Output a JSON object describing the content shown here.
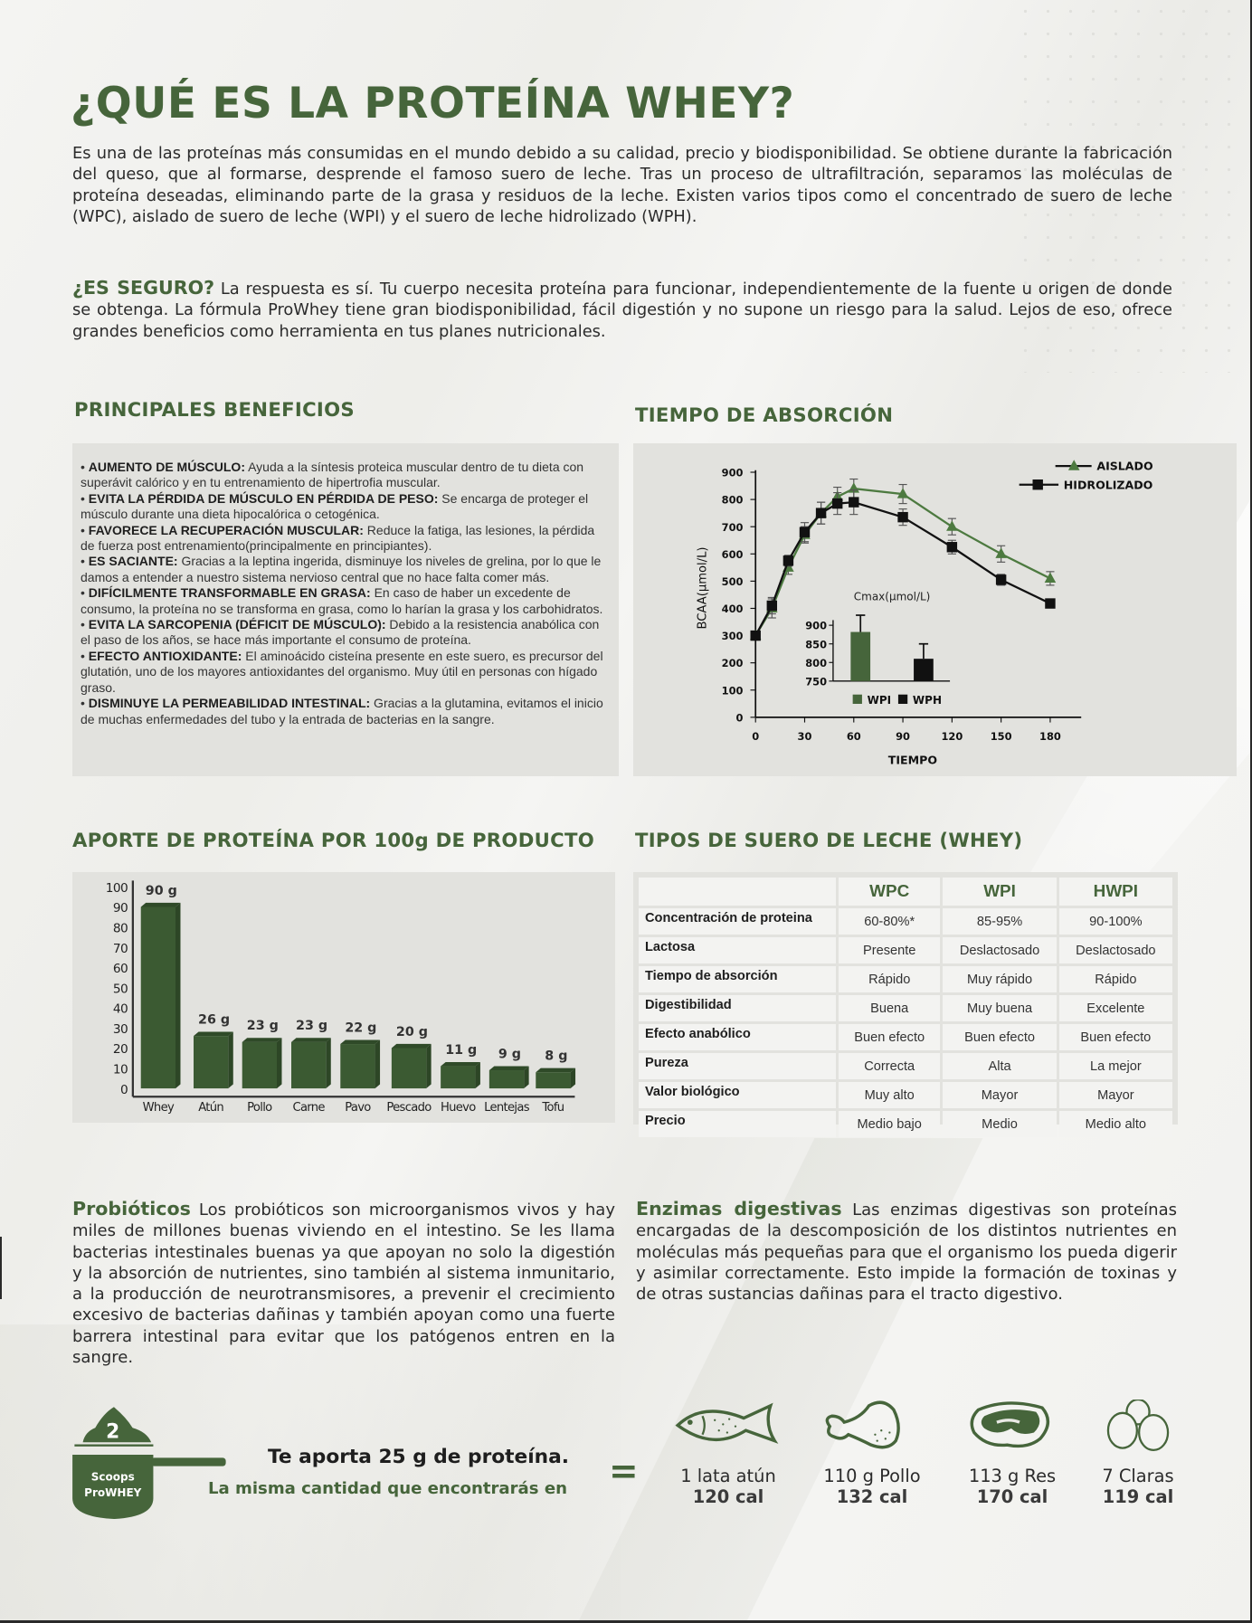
{
  "title": "¿QUÉ ES LA PROTEÍNA WHEY?",
  "intro": "Es una de las proteínas más consumidas en el mundo debido a su calidad, precio y biodisponibilidad. Se obtiene durante la fabricación del queso, que al formarse, desprende el famoso suero de leche. Tras un proceso de ultrafiltración, separamos las moléculas de proteína deseadas, eliminando parte de la grasa y residuos de la leche. Existen varios tipos como el concentrado de suero de leche (WPC), aislado de suero de leche (WPI) y el suero de leche hidrolizado (WPH).",
  "seguro": {
    "lead": "¿ES SEGURO?",
    "text": " La respuesta es sí. Tu cuerpo necesita proteína para funcionar, independientemente de la fuente u origen de donde se obtenga. La fórmula ProWhey tiene gran biodisponibilidad, fácil digestión y no supone un riesgo para la salud. Lejos de eso, ofrece grandes beneficios como herramienta en tus planes nutricionales."
  },
  "benefits": {
    "heading": "PRINCIPALES BENEFICIOS",
    "items": [
      {
        "title": "AUMENTO DE MÚSCULO:",
        "text": " Ayuda a la síntesis proteica muscular dentro de tu dieta con superávit calórico y en tu entrenamiento de hipertrofia muscular."
      },
      {
        "title": "EVITA LA PÉRDIDA DE MÚSCULO EN PÉRDIDA DE PESO:",
        "text": " Se encarga de proteger el músculo durante una dieta hipocalórica o cetogénica."
      },
      {
        "title": "FAVORECE LA RECUPERACIÓN  MUSCULAR:",
        "text": " Reduce la fatiga, las lesiones, la pérdida de fuerza post entrenamiento(principalmente en principiantes)."
      },
      {
        "title": "ES SACIANTE:",
        "text": " Gracias a la leptina ingerida, disminuye los niveles de grelina, por lo que le damos a entender a nuestro sistema nervioso central que no hace falta comer más."
      },
      {
        "title": "DIFÍCILMENTE TRANSFORMABLE EN GRASA:",
        "text": " En caso de haber un excedente de consumo, la proteína no se transforma en grasa, como lo harían la grasa y los carbohidratos."
      },
      {
        "title": "EVITA LA SARCOPENIA (DÉFICIT DE MÚSCULO):",
        "text": " Debido a la resistencia anabólica con el paso de los años, se hace más importante el consumo de proteína."
      },
      {
        "title": "EFECTO ANTIOXIDANTE:",
        "text": " El aminoácido cisteína presente en este suero, es precursor del glutatión, uno de los mayores antioxidantes del organismo. Muy útil en personas con hígado graso."
      },
      {
        "title": "DISMINUYE LA PERMEABILIDAD INTESTINAL:",
        "text": " Gracias a la glutamina, evitamos el inicio de muchas enfermedades del tubo y la entrada de bacterias en la sangre."
      }
    ]
  },
  "absorption": {
    "heading": "TIEMPO DE ABSORCIÓN"
  },
  "protein_section": {
    "heading": "APORTE DE PROTEÍNA POR 100g DE PRODUCTO"
  },
  "whey_types": {
    "heading": "TIPOS DE SUERO DE LECHE (WHEY)",
    "columns": [
      "WPC",
      "WPI",
      "HWPI"
    ],
    "rows": [
      {
        "label": "Concentración de proteina",
        "values": [
          "60-80%*",
          "85-95%",
          "90-100%"
        ]
      },
      {
        "label": "Lactosa",
        "values": [
          "Presente",
          "Deslactosado",
          "Deslactosado"
        ]
      },
      {
        "label": "Tiempo de absorción",
        "values": [
          "Rápido",
          "Muy rápido",
          "Rápido"
        ]
      },
      {
        "label": "Digestibilidad",
        "values": [
          "Buena",
          "Muy buena",
          "Excelente"
        ]
      },
      {
        "label": "Efecto anabólico",
        "values": [
          "Buen efecto",
          "Buen efecto",
          "Buen efecto"
        ]
      },
      {
        "label": "Pureza",
        "values": [
          "Correcta",
          "Alta",
          "La mejor"
        ]
      },
      {
        "label": "Valor biológico",
        "values": [
          "Muy alto",
          "Mayor",
          "Mayor"
        ]
      },
      {
        "label": "Precio",
        "values": [
          "Medio bajo",
          "Medio",
          "Medio alto"
        ]
      }
    ]
  },
  "probioticos": {
    "lead": "Probióticos",
    "text": " Los probióticos son microorganismos vivos y hay miles de millones buenas viviendo en el intestino. Se les llama bacterias intestinales buenas ya que apoyan no solo la digestión y la absorción de nutrientes, sino también al sistema inmunitario, a la producción de neurotransmisores, a prevenir el crecimiento excesivo de bacterias dañinas y también apoyan como una fuerte barrera intestinal para evitar que los patógenos entren en la  sangre."
  },
  "enzimas": {
    "lead": "Enzimas digestivas",
    "text": " Las enzimas digestivas son proteínas encargadas de la descomposición de los distintos nutrientes en moléculas más pequeñas para que el organismo los pueda digerir y asimilar correctamente. Esto impide la formación de toxinas y de otras sustancias dañinas para el tracto digestivo."
  },
  "scoop": {
    "number": "2",
    "line1": "Scoops",
    "line2": "ProWHEY",
    "aporta": "Te aporta 25 g de proteína.",
    "misma": "La misma cantidad que encontrarás en",
    "equals": "="
  },
  "foods": [
    {
      "icon": "fish-icon",
      "qty": "1 lata atún",
      "cal": "120 cal"
    },
    {
      "icon": "chicken-leg-icon",
      "qty": "110 g Pollo",
      "cal": "132 cal"
    },
    {
      "icon": "steak-icon",
      "qty": "113 g Res",
      "cal": "170 cal"
    },
    {
      "icon": "eggs-icon",
      "qty": "7 Claras",
      "cal": "119 cal"
    }
  ],
  "colors": {
    "green": "#46653b",
    "line_green": "#4d7a40",
    "bar_green": "#3b5a32",
    "black": "#111111",
    "panel": "#e2e2de"
  },
  "chart_data": [
    {
      "type": "line",
      "xlabel": "TIEMPO",
      "ylabel": "BCAA(µmol/L)",
      "xlim": [
        0,
        200
      ],
      "ylim": [
        0,
        900
      ],
      "xticks": [
        0,
        30,
        60,
        90,
        120,
        150,
        180
      ],
      "yticks": [
        0,
        100,
        200,
        300,
        400,
        500,
        600,
        700,
        800,
        900
      ],
      "legend": "top-right",
      "grid": false,
      "series": [
        {
          "name": "AISLADO",
          "marker": "triangle",
          "color": "#4d7a40",
          "x": [
            0,
            10,
            20,
            30,
            40,
            50,
            60,
            90,
            120,
            150,
            180
          ],
          "y": [
            300,
            400,
            550,
            670,
            750,
            810,
            840,
            820,
            700,
            600,
            510
          ],
          "err": [
            0,
            35,
            25,
            30,
            40,
            35,
            35,
            35,
            30,
            30,
            25
          ]
        },
        {
          "name": "HIDROLIZADO",
          "marker": "square",
          "color": "#111111",
          "x": [
            0,
            10,
            20,
            30,
            40,
            50,
            60,
            90,
            120,
            150,
            180
          ],
          "y": [
            300,
            410,
            575,
            680,
            750,
            785,
            790,
            735,
            625,
            505,
            418
          ],
          "err": [
            0,
            30,
            20,
            35,
            40,
            40,
            45,
            30,
            25,
            20,
            0
          ]
        }
      ]
    },
    {
      "type": "bar",
      "title": "Cmax(µmol/L)",
      "categories": [
        "WPI",
        "WPH"
      ],
      "values": [
        882,
        810
      ],
      "err": [
        45,
        40
      ],
      "ylim": [
        750,
        930
      ],
      "yticks": [
        750,
        800,
        850,
        900
      ],
      "colors": [
        "#46653b",
        "#111111"
      ],
      "legend": "bottom"
    },
    {
      "type": "bar",
      "categories": [
        "Whey",
        "Atún",
        "Pollo",
        "Carne",
        "Pavo",
        "Pescado",
        "Huevo",
        "Lentejas",
        "Tofu"
      ],
      "values": [
        90,
        26,
        23,
        23,
        22,
        20,
        11,
        9,
        8
      ],
      "labels": [
        "90 g",
        "26 g",
        "23 g",
        "23 g",
        "22 g",
        "20 g",
        "11 g",
        "9 g",
        "8 g"
      ],
      "ylim": [
        0,
        100
      ],
      "yticks": [
        0,
        10,
        20,
        30,
        40,
        50,
        60,
        70,
        80,
        90,
        100
      ],
      "grid": false
    }
  ]
}
